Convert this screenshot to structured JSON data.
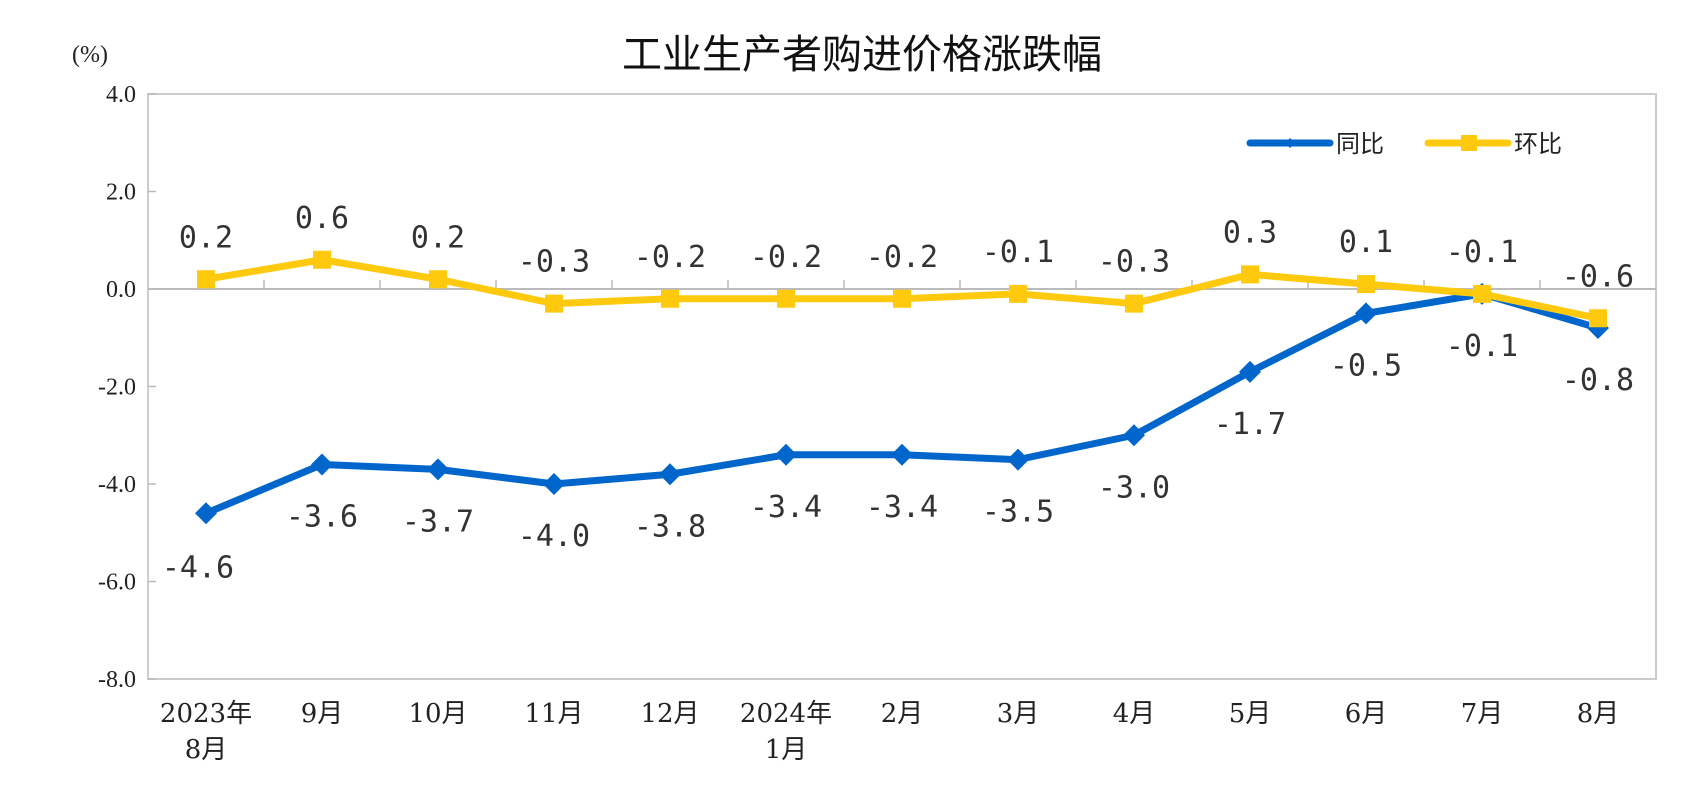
{
  "chart_data": {
    "type": "line",
    "title": "工业生产者购进价格涨跌幅",
    "ylabel": "(%)",
    "ylim": [
      -8.0,
      4.0
    ],
    "yticks": [
      "4.0",
      "2.0",
      "0.0",
      "-2.0",
      "-4.0",
      "-6.0",
      "-8.0"
    ],
    "categories": [
      [
        "2023年",
        "8月"
      ],
      [
        "9月"
      ],
      [
        "10月"
      ],
      [
        "11月"
      ],
      [
        "12月"
      ],
      [
        "2024年",
        "1月"
      ],
      [
        "2月"
      ],
      [
        "3月"
      ],
      [
        "4月"
      ],
      [
        "5月"
      ],
      [
        "6月"
      ],
      [
        "7月"
      ],
      [
        "8月"
      ]
    ],
    "legend_position": "top-right",
    "grid": false,
    "series": [
      {
        "name": "同比",
        "color": "#0066CC",
        "marker": "diamond",
        "values": [
          -4.6,
          -3.6,
          -3.7,
          -4.0,
          -3.8,
          -3.4,
          -3.4,
          -3.5,
          -3.0,
          -1.7,
          -0.5,
          -0.1,
          -0.8
        ],
        "labels": [
          "-4.6",
          "-3.6",
          "-3.7",
          "-4.0",
          "-3.8",
          "-3.4",
          "-3.4",
          "-3.5",
          "-3.0",
          "-1.7",
          "-0.5",
          "-0.1",
          "-0.8"
        ]
      },
      {
        "name": "环比",
        "color": "#FFC90E",
        "marker": "square",
        "values": [
          0.2,
          0.6,
          0.2,
          -0.3,
          -0.2,
          -0.2,
          -0.2,
          -0.1,
          -0.3,
          0.3,
          0.1,
          -0.1,
          -0.6
        ],
        "labels": [
          "0.2",
          "0.6",
          "0.2",
          "-0.3",
          "-0.2",
          "-0.2",
          "-0.2",
          "-0.1",
          "-0.3",
          "0.3",
          "0.1",
          "-0.1",
          "-0.6"
        ]
      }
    ]
  }
}
